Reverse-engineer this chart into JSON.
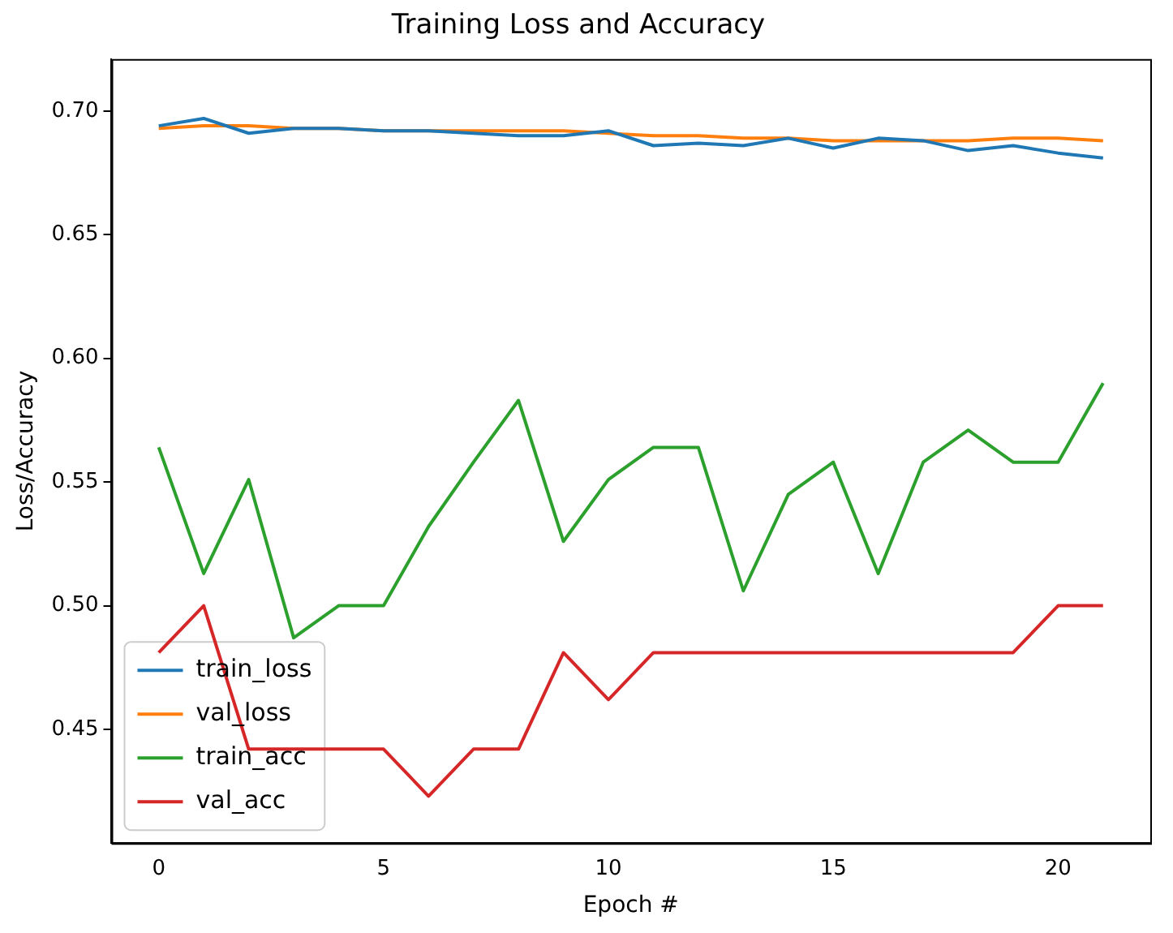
{
  "chart_data": {
    "type": "line",
    "title": "Training Loss and Accuracy",
    "xlabel": "Epoch #",
    "ylabel": "Loss/Accuracy",
    "x": [
      0,
      1,
      2,
      3,
      4,
      5,
      6,
      7,
      8,
      9,
      10,
      11,
      12,
      13,
      14,
      15,
      16,
      17,
      18,
      19,
      20,
      21
    ],
    "xlim": [
      -1.05,
      22.05
    ],
    "xticks": [
      0,
      5,
      10,
      15,
      20
    ],
    "ylim": [
      0.404,
      0.721
    ],
    "yticks": [
      {
        "value": 0.45,
        "label": "0.45"
      },
      {
        "value": 0.5,
        "label": "0.50"
      },
      {
        "value": 0.55,
        "label": "0.55"
      },
      {
        "value": 0.6,
        "label": "0.60"
      },
      {
        "value": 0.65,
        "label": "0.65"
      },
      {
        "value": 0.7,
        "label": "0.70"
      }
    ],
    "series": [
      {
        "name": "train_loss",
        "color": "#1f77b4",
        "values": [
          0.694,
          0.697,
          0.691,
          0.693,
          0.693,
          0.692,
          0.692,
          0.691,
          0.69,
          0.69,
          0.692,
          0.686,
          0.687,
          0.686,
          0.689,
          0.685,
          0.689,
          0.688,
          0.684,
          0.686,
          0.683,
          0.681
        ]
      },
      {
        "name": "val_loss",
        "color": "#ff7f0e",
        "values": [
          0.693,
          0.694,
          0.694,
          0.693,
          0.693,
          0.692,
          0.692,
          0.692,
          0.692,
          0.692,
          0.691,
          0.69,
          0.69,
          0.689,
          0.689,
          0.688,
          0.688,
          0.688,
          0.688,
          0.689,
          0.689,
          0.688
        ]
      },
      {
        "name": "train_acc",
        "color": "#2ca02c",
        "values": [
          0.564,
          0.513,
          0.551,
          0.487,
          0.5,
          0.5,
          0.532,
          0.558,
          0.583,
          0.526,
          0.551,
          0.564,
          0.564,
          0.506,
          0.545,
          0.558,
          0.513,
          0.558,
          0.571,
          0.558,
          0.558,
          0.59
        ]
      },
      {
        "name": "val_acc",
        "color": "#d62728",
        "values": [
          0.481,
          0.5,
          0.442,
          0.442,
          0.442,
          0.442,
          0.423,
          0.442,
          0.442,
          0.481,
          0.462,
          0.481,
          0.481,
          0.481,
          0.481,
          0.481,
          0.481,
          0.481,
          0.481,
          0.481,
          0.5,
          0.5
        ]
      }
    ],
    "legend": "bottom left",
    "grid": false,
    "marker": "none",
    "line_style": "solid"
  }
}
